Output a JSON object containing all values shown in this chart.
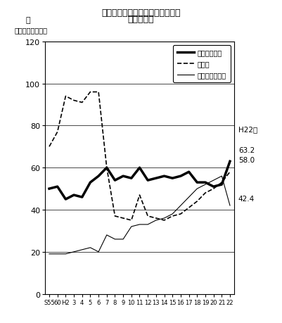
{
  "title1": "心疾患の種類別死亡率の年次推移",
  "title2": "（熊本県）",
  "ylabel1": "率",
  "ylabel2": "（人口１０万対）",
  "xlabel_ticks": [
    "S55",
    "60",
    "H2",
    "3",
    "4",
    "5",
    "6",
    "7",
    "8",
    "9",
    "10",
    "11",
    "12",
    "13",
    "14",
    "15",
    "16",
    "17",
    "18",
    "19",
    "20",
    "21",
    "22"
  ],
  "ylim": [
    0,
    120
  ],
  "yticks": [
    0,
    20,
    40,
    60,
    80,
    100,
    120
  ],
  "right_label": "H22年",
  "right_v1": "63.2",
  "right_v2": "58.0",
  "right_v3": "42.4",
  "legend_labels": [
    "虚血性心疾患",
    "心不全",
    "その他の心疾患"
  ],
  "series": {
    "虚血性心疾患": {
      "values": [
        50,
        51,
        45,
        47,
        46,
        53,
        56,
        60,
        54,
        56,
        55,
        60,
        54,
        55,
        56,
        55,
        56,
        58,
        53,
        53,
        51,
        52,
        63
      ],
      "linestyle": "solid",
      "linewidth": 2.5,
      "color": "#000000"
    },
    "心不全": {
      "values": [
        70,
        77,
        94,
        92,
        91,
        96,
        96,
        60,
        37,
        36,
        35,
        47,
        37,
        36,
        35,
        37,
        38,
        41,
        44,
        48,
        50,
        53,
        58
      ],
      "linestyle": "dashed",
      "linewidth": 1.2,
      "color": "#000000"
    },
    "その他の心疾患": {
      "values": [
        19,
        19,
        19,
        20,
        21,
        22,
        20,
        28,
        26,
        26,
        32,
        33,
        33,
        35,
        36,
        38,
        42,
        46,
        50,
        52,
        54,
        56,
        42
      ],
      "linestyle": "solid",
      "linewidth": 0.8,
      "color": "#000000"
    }
  }
}
